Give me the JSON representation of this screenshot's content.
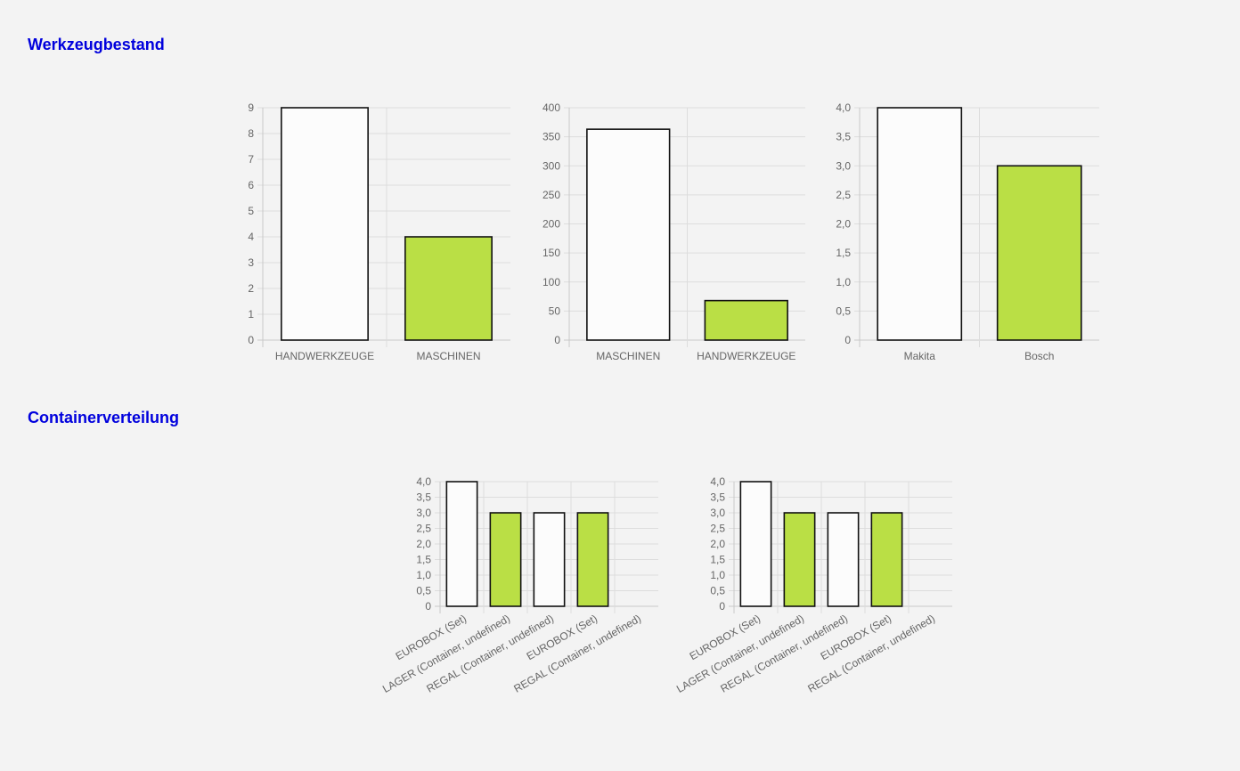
{
  "sections": [
    {
      "title": "Werkzeugbestand"
    },
    {
      "title": "Containerverteilung"
    }
  ],
  "colors": {
    "bar_white": "#fcfcfc",
    "bar_green": "#badf45",
    "bar_stroke": "#111111",
    "grid": "#dddddd",
    "tick_text": "#666666",
    "title": "#0000dd"
  },
  "chart_data": [
    {
      "type": "bar",
      "section": "Werkzeugbestand",
      "categories": [
        "HANDWERKZEUGE",
        "MASCHINEN"
      ],
      "values": [
        9,
        4
      ],
      "bar_colors": [
        "white",
        "green"
      ],
      "yticks": [
        "0",
        "1",
        "2",
        "3",
        "4",
        "5",
        "6",
        "7",
        "8",
        "9"
      ],
      "ylim": [
        0,
        9
      ],
      "grid": true,
      "title": "",
      "xlabel": "",
      "ylabel": ""
    },
    {
      "type": "bar",
      "section": "Werkzeugbestand",
      "categories": [
        "MASCHINEN",
        "HANDWERKZEUGE"
      ],
      "values": [
        363,
        68
      ],
      "bar_colors": [
        "white",
        "green"
      ],
      "yticks": [
        "0",
        "50",
        "100",
        "150",
        "200",
        "250",
        "300",
        "350",
        "400"
      ],
      "ylim": [
        0,
        400
      ],
      "grid": true,
      "title": "",
      "xlabel": "",
      "ylabel": ""
    },
    {
      "type": "bar",
      "section": "Werkzeugbestand",
      "categories": [
        "Makita",
        "Bosch"
      ],
      "values": [
        4,
        3
      ],
      "bar_colors": [
        "white",
        "green"
      ],
      "yticks": [
        "0",
        "0,5",
        "1,0",
        "1,5",
        "2,0",
        "2,5",
        "3,0",
        "3,5",
        "4,0"
      ],
      "ylim": [
        0,
        4
      ],
      "grid": true,
      "title": "",
      "xlabel": "",
      "ylabel": ""
    },
    {
      "type": "bar",
      "section": "Containerverteilung",
      "categories": [
        "EUROBOX (Set)",
        "LAGER (Container, undefined)",
        "REGAL (Container, undefined)",
        "EUROBOX (Set)",
        "REGAL (Container, undefined)"
      ],
      "values": [
        4,
        3,
        3,
        3,
        null
      ],
      "bar_colors": [
        "white",
        "green",
        "white",
        "green",
        "white"
      ],
      "yticks": [
        "0",
        "0,5",
        "1,0",
        "1,5",
        "2,0",
        "2,5",
        "3,0",
        "3,5",
        "4,0"
      ],
      "ylim": [
        0,
        4
      ],
      "grid": true,
      "title": "",
      "xlabel": "",
      "ylabel": ""
    },
    {
      "type": "bar",
      "section": "Containerverteilung",
      "categories": [
        "EUROBOX (Set)",
        "LAGER (Container, undefined)",
        "REGAL (Container, undefined)",
        "EUROBOX (Set)",
        "REGAL (Container, undefined)"
      ],
      "values": [
        4,
        3,
        3,
        3,
        null
      ],
      "bar_colors": [
        "white",
        "green",
        "white",
        "green",
        "white"
      ],
      "yticks": [
        "0",
        "0,5",
        "1,0",
        "1,5",
        "2,0",
        "2,5",
        "3,0",
        "3,5",
        "4,0"
      ],
      "ylim": [
        0,
        4
      ],
      "grid": true,
      "title": "",
      "xlabel": "",
      "ylabel": ""
    }
  ]
}
